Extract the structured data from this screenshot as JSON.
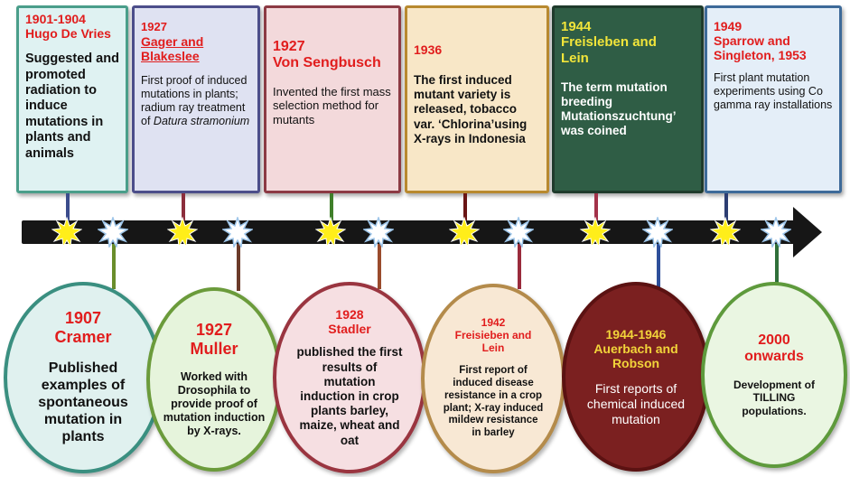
{
  "top_events": [
    {
      "year": "1901-1904",
      "name": "Hugo De Vries",
      "desc": "Suggested and promoted radiation to induce mutations in plants and animals",
      "bg": "#dff2f2",
      "border": "#4a9e8a",
      "line": "#3b4c8c"
    },
    {
      "year": "1927",
      "name": "Gager and Blakeslee",
      "desc": "First proof of induced mutations in plants; radium ray treatment of",
      "desc_italic": "Datura stramonium",
      "bg": "#dfe2f2",
      "border": "#4c4e8a",
      "line": "#8c2e3c"
    },
    {
      "year": "1927",
      "name": "Von Sengbusch",
      "desc": "Invented the first mass selection method for mutants",
      "bg": "#f3d9db",
      "border": "#8c3a44",
      "line": "#3f7f2a"
    },
    {
      "year": "1936",
      "name": "",
      "desc": "The first induced mutant variety is released, tobacco var. ‘Chlorina’using X-rays in Indonesia",
      "bg": "#f8e7c7",
      "border": "#b8892f",
      "line": "#6a1515"
    },
    {
      "year": "1944",
      "name": "Freisleben and Lein",
      "desc": "The term mutation breeding Mutationszuchtung’ was coined",
      "bg": "#2f5d45",
      "border": "#1f3b2c",
      "line": "#a3324a"
    },
    {
      "year": "1949",
      "name": "Sparrow and Singleton, 1953",
      "desc": "First plant mutation experiments using Co gamma ray installations",
      "bg": "#e4eef8",
      "border": "#3d6a99",
      "line": "#2d3e73"
    }
  ],
  "bottom_events": [
    {
      "year": "1907",
      "name": "Cramer",
      "desc": "Published examples of spontaneous mutation in plants",
      "bg": "#e0f1ef",
      "border": "#3a8f80",
      "line": "#6a8d2b"
    },
    {
      "year": "1927",
      "name": "Muller",
      "desc": "Worked with Drosophila to provide proof of mutation induction by X-rays.",
      "bg": "#e6f4dc",
      "border": "#6b9b3b",
      "line": "#6b3b2a"
    },
    {
      "year": "1928",
      "name": "Stadler",
      "desc": "published the first results of mutation induction in crop plants barley, maize, wheat and oat",
      "bg": "#f6dfe2",
      "border": "#9a3540",
      "line": "#9a4b2c"
    },
    {
      "year": "1942",
      "name": "Freisieben and Lein",
      "desc": "First report of induced disease resistance in a crop plant; X-ray induced mildew resistance in barley",
      "bg": "#f8e8d4",
      "border": "#b48b4b",
      "line": "#9a2b3c"
    },
    {
      "year": "1944-1946",
      "name": "Auerbach and Robson",
      "desc": "First reports of chemical induced mutation",
      "bg": "#7b2020",
      "border": "#5b1212",
      "line": "#2d4f9a"
    },
    {
      "year": "2000",
      "name": "onwards",
      "desc": "Development of TILLING populations.",
      "bg": "#eaf6e2",
      "border": "#5e9a3c",
      "line": "#2f6f3a"
    }
  ]
}
